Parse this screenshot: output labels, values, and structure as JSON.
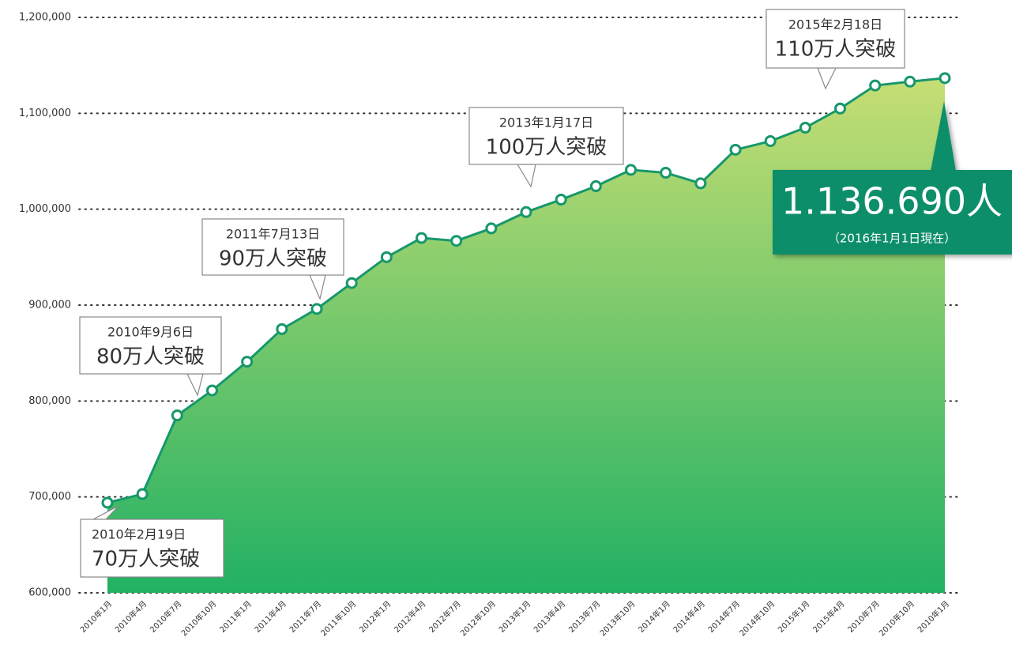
{
  "chart_data": {
    "type": "area",
    "categories": [
      "2010年1月",
      "2010年4月",
      "2010年7月",
      "2010年10月",
      "2011年1月",
      "2011年4月",
      "2011年7月",
      "2011年10月",
      "2012年1月",
      "2012年4月",
      "2012年7月",
      "2012年10月",
      "2013年1月",
      "2013年4月",
      "2013年7月",
      "2013年10月",
      "2014年1月",
      "2014年4月",
      "2014年7月",
      "2014年10月",
      "2015年1月",
      "2015年4月",
      "2010年7月",
      "2010年10月",
      "2010年1月"
    ],
    "values": [
      694000,
      703000,
      785000,
      811000,
      841000,
      875000,
      896000,
      923000,
      950000,
      970000,
      967000,
      980000,
      997000,
      1010000,
      1024000,
      1041000,
      1038000,
      1027000,
      1062000,
      1071000,
      1085000,
      1105000,
      1129000,
      1133000,
      1136690
    ],
    "color": "#17976b",
    "ylim": [
      600000,
      1200000
    ],
    "yticks": [
      {
        "value": 600000,
        "label": "600,000"
      },
      {
        "value": 700000,
        "label": "700,000"
      },
      {
        "value": 800000,
        "label": "800,000"
      },
      {
        "value": 900000,
        "label": "900,000"
      },
      {
        "value": 1000000,
        "label": "1,000,000"
      },
      {
        "value": 1100000,
        "label": "1,100,000"
      },
      {
        "value": 1200000,
        "label": "1,200,000"
      }
    ],
    "grid": true,
    "annotations": [
      {
        "date": "2010年2月19日",
        "text": "70万人突破"
      },
      {
        "date": "2010年9月6日",
        "text": "80万人突破"
      },
      {
        "date": "2011年7月13日",
        "text": "90万人突破"
      },
      {
        "date": "2013年1月17日",
        "text": "100万人突破"
      },
      {
        "date": "2015年2月18日",
        "text": "110万人突破"
      }
    ],
    "current": {
      "label": "1.136.690人",
      "note": "（2016年1月1日現在）"
    }
  }
}
